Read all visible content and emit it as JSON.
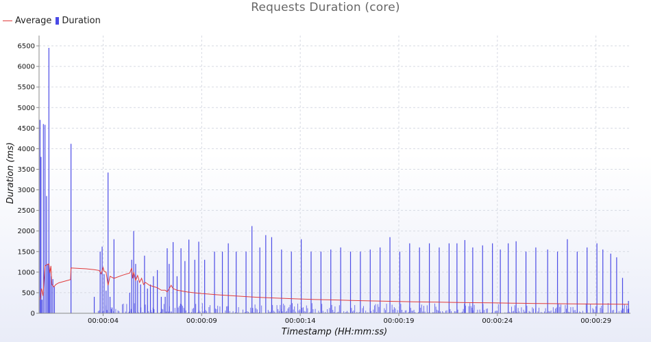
{
  "chart_data": {
    "type": "bar",
    "title": "Requests Duration (core)",
    "xlabel": "Timestamp (HH:mm:ss)",
    "ylabel": "Duration (ms)",
    "legend": "top-left",
    "grid": true,
    "x_unit": "seconds",
    "xlim": [
      0,
      30
    ],
    "ylim": [
      0,
      6750
    ],
    "x_ticks": [
      {
        "value": 3.25,
        "label": "00:00:04"
      },
      {
        "value": 8.25,
        "label": "00:00:09"
      },
      {
        "value": 13.25,
        "label": "00:00:14"
      },
      {
        "value": 18.25,
        "label": "00:00:19"
      },
      {
        "value": 23.25,
        "label": "00:00:24"
      },
      {
        "value": 28.25,
        "label": "00:00:29"
      }
    ],
    "y_ticks": [
      0,
      500,
      1000,
      1500,
      2000,
      2500,
      3000,
      3500,
      4000,
      4500,
      5000,
      5500,
      6000,
      6500
    ],
    "series": [
      {
        "name": "Average",
        "type": "line",
        "color": "#e03a3a",
        "points": [
          [
            0.05,
            330
          ],
          [
            0.12,
            600
          ],
          [
            0.2,
            420
          ],
          [
            0.3,
            1150
          ],
          [
            0.4,
            1180
          ],
          [
            0.5,
            1200
          ],
          [
            0.55,
            980
          ],
          [
            0.6,
            1150
          ],
          [
            0.65,
            700
          ],
          [
            0.75,
            640
          ],
          [
            0.85,
            700
          ],
          [
            1.0,
            740
          ],
          [
            1.3,
            780
          ],
          [
            1.6,
            820
          ],
          [
            1.62,
            1100
          ],
          [
            2.0,
            1090
          ],
          [
            2.4,
            1080
          ],
          [
            2.8,
            1060
          ],
          [
            3.05,
            1040
          ],
          [
            3.15,
            960
          ],
          [
            3.25,
            1110
          ],
          [
            3.3,
            1020
          ],
          [
            3.4,
            1000
          ],
          [
            3.5,
            680
          ],
          [
            3.6,
            900
          ],
          [
            3.8,
            850
          ],
          [
            4.2,
            920
          ],
          [
            4.6,
            980
          ],
          [
            4.7,
            1100
          ],
          [
            4.75,
            850
          ],
          [
            4.8,
            1000
          ],
          [
            4.9,
            800
          ],
          [
            5.0,
            920
          ],
          [
            5.1,
            750
          ],
          [
            5.2,
            850
          ],
          [
            5.3,
            700
          ],
          [
            5.4,
            750
          ],
          [
            5.6,
            680
          ],
          [
            5.8,
            650
          ],
          [
            6.0,
            620
          ],
          [
            6.2,
            560
          ],
          [
            6.4,
            560
          ],
          [
            6.5,
            520
          ],
          [
            6.6,
            600
          ],
          [
            6.7,
            680
          ],
          [
            6.8,
            600
          ],
          [
            7.0,
            560
          ],
          [
            7.5,
            520
          ],
          [
            8.0,
            490
          ],
          [
            9.0,
            450
          ],
          [
            10.0,
            420
          ],
          [
            11.0,
            390
          ],
          [
            12.0,
            370
          ],
          [
            13.0,
            350
          ],
          [
            14.0,
            335
          ],
          [
            15.0,
            325
          ],
          [
            16.0,
            310
          ],
          [
            17.0,
            300
          ],
          [
            18.0,
            290
          ],
          [
            19.0,
            280
          ],
          [
            20.0,
            272
          ],
          [
            21.0,
            265
          ],
          [
            22.0,
            258
          ],
          [
            23.0,
            252
          ],
          [
            24.0,
            246
          ],
          [
            25.0,
            240
          ],
          [
            26.0,
            234
          ],
          [
            27.0,
            229
          ],
          [
            28.0,
            225
          ],
          [
            29.0,
            222
          ],
          [
            29.9,
            218
          ]
        ]
      },
      {
        "name": "Duration",
        "type": "bar",
        "color": "#4a4ae6",
        "points": [
          [
            0.05,
            4700
          ],
          [
            0.1,
            3800
          ],
          [
            0.15,
            330
          ],
          [
            0.22,
            4600
          ],
          [
            0.3,
            4580
          ],
          [
            0.38,
            2850
          ],
          [
            0.45,
            1200
          ],
          [
            0.5,
            6450
          ],
          [
            0.55,
            1000
          ],
          [
            0.62,
            900
          ],
          [
            0.7,
            830
          ],
          [
            0.78,
            640
          ],
          [
            1.62,
            4120
          ],
          [
            2.8,
            400
          ],
          [
            3.1,
            1500
          ],
          [
            3.2,
            1620
          ],
          [
            3.3,
            950
          ],
          [
            3.4,
            550
          ],
          [
            3.5,
            3420
          ],
          [
            3.6,
            400
          ],
          [
            3.7,
            140
          ],
          [
            3.8,
            1800
          ],
          [
            4.6,
            500
          ],
          [
            4.7,
            1300
          ],
          [
            4.8,
            2000
          ],
          [
            4.9,
            1200
          ],
          [
            5.0,
            800
          ],
          [
            5.15,
            700
          ],
          [
            5.35,
            1400
          ],
          [
            5.5,
            600
          ],
          [
            5.65,
            700
          ],
          [
            5.8,
            900
          ],
          [
            6.0,
            1050
          ],
          [
            6.2,
            400
          ],
          [
            6.4,
            400
          ],
          [
            6.5,
            1580
          ],
          [
            6.6,
            1200
          ],
          [
            6.8,
            1730
          ],
          [
            7.0,
            900
          ],
          [
            7.2,
            1580
          ],
          [
            7.4,
            1270
          ],
          [
            7.6,
            1790
          ],
          [
            7.9,
            1300
          ],
          [
            8.1,
            1740
          ],
          [
            8.4,
            1300
          ],
          [
            8.9,
            1500
          ],
          [
            9.3,
            1500
          ],
          [
            9.6,
            1700
          ],
          [
            10.0,
            1500
          ],
          [
            10.5,
            1500
          ],
          [
            10.8,
            2120
          ],
          [
            11.2,
            1600
          ],
          [
            11.5,
            1900
          ],
          [
            11.8,
            1850
          ],
          [
            12.3,
            1550
          ],
          [
            12.8,
            1500
          ],
          [
            13.3,
            1800
          ],
          [
            13.8,
            1500
          ],
          [
            14.3,
            1500
          ],
          [
            14.8,
            1550
          ],
          [
            15.3,
            1600
          ],
          [
            15.8,
            1500
          ],
          [
            16.3,
            1500
          ],
          [
            16.8,
            1550
          ],
          [
            17.3,
            1600
          ],
          [
            17.8,
            1850
          ],
          [
            18.3,
            1500
          ],
          [
            18.8,
            1700
          ],
          [
            19.3,
            1600
          ],
          [
            19.8,
            1700
          ],
          [
            20.3,
            1600
          ],
          [
            20.8,
            1700
          ],
          [
            21.2,
            1700
          ],
          [
            21.6,
            1780
          ],
          [
            22.0,
            1600
          ],
          [
            22.5,
            1650
          ],
          [
            23.0,
            1700
          ],
          [
            23.4,
            1550
          ],
          [
            23.8,
            1700
          ],
          [
            24.2,
            1750
          ],
          [
            24.7,
            1500
          ],
          [
            25.2,
            1600
          ],
          [
            25.8,
            1550
          ],
          [
            26.3,
            1500
          ],
          [
            26.8,
            1800
          ],
          [
            27.3,
            1500
          ],
          [
            27.8,
            1600
          ],
          [
            28.3,
            1700
          ],
          [
            28.6,
            1550
          ],
          [
            29.0,
            1450
          ],
          [
            29.3,
            1360
          ],
          [
            29.6,
            860
          ],
          [
            29.9,
            300
          ]
        ],
        "baseline_noise": {
          "range_ms": [
            0,
            250
          ],
          "x_from": 3.0
        }
      }
    ]
  }
}
